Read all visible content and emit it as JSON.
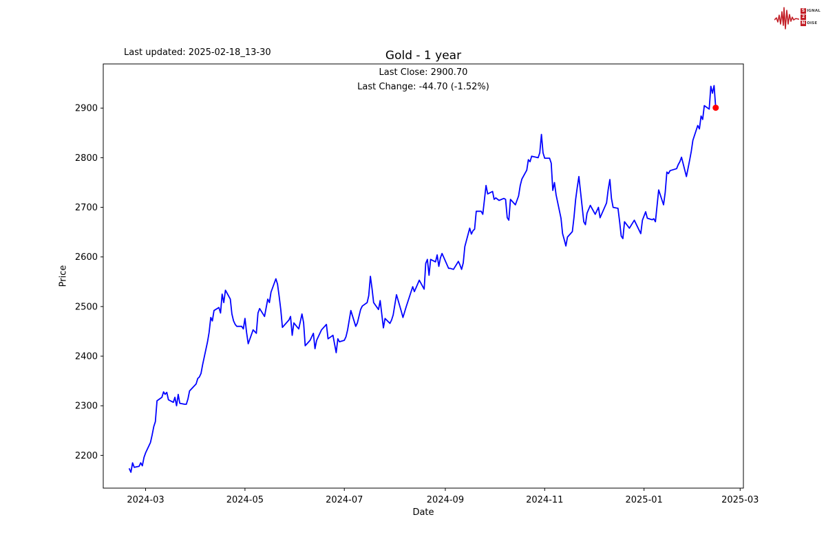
{
  "figure": {
    "last_updated": "Last updated: 2025-02-18_13-30",
    "logo": {
      "color": "#c21d25",
      "rows": [
        {
          "badge": "S",
          "rest": "IGNAL"
        },
        {
          "badge": "2",
          "rest": ""
        },
        {
          "badge": "N",
          "rest": "OISE"
        }
      ]
    }
  },
  "chart_data": {
    "type": "line",
    "title": "Gold - 1 year",
    "xlabel": "Date",
    "ylabel": "Price",
    "annotation": {
      "line1": "Last Close: 2900.70",
      "line2": "Last Change: -44.70 (-1.52%)"
    },
    "last_close": 2900.7,
    "last_change": -44.7,
    "last_change_pct": -1.52,
    "line_color": "#0000ff",
    "marker_color": "#ff0000",
    "grid": false,
    "legend": null,
    "xlim": [
      "2024-02-04",
      "2025-03-03"
    ],
    "ylim": [
      2134,
      2989
    ],
    "y_ticks": [
      2200,
      2300,
      2400,
      2500,
      2600,
      2700,
      2800,
      2900
    ],
    "x_ticks": [
      {
        "label": "2024-03",
        "date": "2024-03-01"
      },
      {
        "label": "2024-05",
        "date": "2024-05-01"
      },
      {
        "label": "2024-07",
        "date": "2024-07-01"
      },
      {
        "label": "2024-09",
        "date": "2024-09-01"
      },
      {
        "label": "2024-11",
        "date": "2024-11-01"
      },
      {
        "label": "2025-01",
        "date": "2025-01-01"
      },
      {
        "label": "2025-03",
        "date": "2025-03-01"
      }
    ],
    "series": [
      {
        "name": "Gold",
        "points": [
          [
            "2024-02-20",
            2173
          ],
          [
            "2024-02-21",
            2166
          ],
          [
            "2024-02-22",
            2185
          ],
          [
            "2024-02-23",
            2176
          ],
          [
            "2024-02-26",
            2178
          ],
          [
            "2024-02-27",
            2185
          ],
          [
            "2024-02-28",
            2179
          ],
          [
            "2024-02-29",
            2196
          ],
          [
            "2024-03-01",
            2205
          ],
          [
            "2024-03-04",
            2226
          ],
          [
            "2024-03-05",
            2241
          ],
          [
            "2024-03-06",
            2258
          ],
          [
            "2024-03-07",
            2268
          ],
          [
            "2024-03-08",
            2310
          ],
          [
            "2024-03-11",
            2317
          ],
          [
            "2024-03-12",
            2328
          ],
          [
            "2024-03-13",
            2323
          ],
          [
            "2024-03-14",
            2327
          ],
          [
            "2024-03-15",
            2312
          ],
          [
            "2024-03-18",
            2307
          ],
          [
            "2024-03-19",
            2317
          ],
          [
            "2024-03-20",
            2300
          ],
          [
            "2024-03-21",
            2323
          ],
          [
            "2024-03-22",
            2305
          ],
          [
            "2024-03-25",
            2303
          ],
          [
            "2024-03-26",
            2303
          ],
          [
            "2024-03-27",
            2314
          ],
          [
            "2024-03-28",
            2330
          ],
          [
            "2024-04-01",
            2344
          ],
          [
            "2024-04-02",
            2355
          ],
          [
            "2024-04-03",
            2358
          ],
          [
            "2024-04-04",
            2365
          ],
          [
            "2024-04-05",
            2383
          ],
          [
            "2024-04-08",
            2429
          ],
          [
            "2024-04-09",
            2448
          ],
          [
            "2024-04-10",
            2478
          ],
          [
            "2024-04-11",
            2471
          ],
          [
            "2024-04-12",
            2492
          ],
          [
            "2024-04-15",
            2498
          ],
          [
            "2024-04-16",
            2487
          ],
          [
            "2024-04-17",
            2525
          ],
          [
            "2024-04-18",
            2508
          ],
          [
            "2024-04-19",
            2533
          ],
          [
            "2024-04-22",
            2515
          ],
          [
            "2024-04-23",
            2485
          ],
          [
            "2024-04-24",
            2471
          ],
          [
            "2024-04-25",
            2464
          ],
          [
            "2024-04-26",
            2460
          ],
          [
            "2024-04-29",
            2460
          ],
          [
            "2024-04-30",
            2455
          ],
          [
            "2024-05-01",
            2476
          ],
          [
            "2024-05-02",
            2448
          ],
          [
            "2024-05-03",
            2425
          ],
          [
            "2024-05-06",
            2453
          ],
          [
            "2024-05-08",
            2446
          ],
          [
            "2024-05-09",
            2487
          ],
          [
            "2024-05-10",
            2496
          ],
          [
            "2024-05-13",
            2480
          ],
          [
            "2024-05-15",
            2515
          ],
          [
            "2024-05-16",
            2508
          ],
          [
            "2024-05-17",
            2529
          ],
          [
            "2024-05-20",
            2556
          ],
          [
            "2024-05-21",
            2545
          ],
          [
            "2024-05-22",
            2520
          ],
          [
            "2024-05-23",
            2494
          ],
          [
            "2024-05-24",
            2458
          ],
          [
            "2024-05-28",
            2473
          ],
          [
            "2024-05-29",
            2480
          ],
          [
            "2024-05-30",
            2442
          ],
          [
            "2024-05-31",
            2467
          ],
          [
            "2024-06-03",
            2455
          ],
          [
            "2024-06-05",
            2485
          ],
          [
            "2024-06-06",
            2467
          ],
          [
            "2024-06-07",
            2421
          ],
          [
            "2024-06-10",
            2432
          ],
          [
            "2024-06-12",
            2446
          ],
          [
            "2024-06-13",
            2415
          ],
          [
            "2024-06-14",
            2432
          ],
          [
            "2024-06-17",
            2453
          ],
          [
            "2024-06-20",
            2464
          ],
          [
            "2024-06-21",
            2435
          ],
          [
            "2024-06-24",
            2442
          ],
          [
            "2024-06-26",
            2407
          ],
          [
            "2024-06-27",
            2435
          ],
          [
            "2024-06-28",
            2429
          ],
          [
            "2024-07-01",
            2432
          ],
          [
            "2024-07-02",
            2439
          ],
          [
            "2024-07-03",
            2453
          ],
          [
            "2024-07-05",
            2492
          ],
          [
            "2024-07-08",
            2460
          ],
          [
            "2024-07-09",
            2467
          ],
          [
            "2024-07-11",
            2494
          ],
          [
            "2024-07-12",
            2501
          ],
          [
            "2024-07-15",
            2508
          ],
          [
            "2024-07-16",
            2522
          ],
          [
            "2024-07-17",
            2561
          ],
          [
            "2024-07-18",
            2536
          ],
          [
            "2024-07-19",
            2508
          ],
          [
            "2024-07-22",
            2494
          ],
          [
            "2024-07-23",
            2512
          ],
          [
            "2024-07-25",
            2457
          ],
          [
            "2024-07-26",
            2476
          ],
          [
            "2024-07-29",
            2466
          ],
          [
            "2024-07-30",
            2473
          ],
          [
            "2024-07-31",
            2483
          ],
          [
            "2024-08-02",
            2524
          ],
          [
            "2024-08-05",
            2490
          ],
          [
            "2024-08-06",
            2478
          ],
          [
            "2024-08-08",
            2500
          ],
          [
            "2024-08-12",
            2540
          ],
          [
            "2024-08-13",
            2530
          ],
          [
            "2024-08-16",
            2553
          ],
          [
            "2024-08-19",
            2535
          ],
          [
            "2024-08-20",
            2587
          ],
          [
            "2024-08-21",
            2595
          ],
          [
            "2024-08-22",
            2563
          ],
          [
            "2024-08-23",
            2595
          ],
          [
            "2024-08-26",
            2590
          ],
          [
            "2024-08-27",
            2604
          ],
          [
            "2024-08-28",
            2581
          ],
          [
            "2024-08-29",
            2598
          ],
          [
            "2024-08-30",
            2607
          ],
          [
            "2024-09-03",
            2577
          ],
          [
            "2024-09-04",
            2577
          ],
          [
            "2024-09-06",
            2575
          ],
          [
            "2024-09-09",
            2591
          ],
          [
            "2024-09-10",
            2584
          ],
          [
            "2024-09-11",
            2575
          ],
          [
            "2024-09-12",
            2588
          ],
          [
            "2024-09-13",
            2621
          ],
          [
            "2024-09-16",
            2658
          ],
          [
            "2024-09-17",
            2646
          ],
          [
            "2024-09-18",
            2653
          ],
          [
            "2024-09-19",
            2656
          ],
          [
            "2024-09-20",
            2692
          ],
          [
            "2024-09-23",
            2692
          ],
          [
            "2024-09-24",
            2686
          ],
          [
            "2024-09-26",
            2744
          ],
          [
            "2024-09-27",
            2727
          ],
          [
            "2024-09-30",
            2732
          ],
          [
            "2024-10-01",
            2716
          ],
          [
            "2024-10-02",
            2719
          ],
          [
            "2024-10-04",
            2714
          ],
          [
            "2024-10-07",
            2718
          ],
          [
            "2024-10-08",
            2716
          ],
          [
            "2024-10-09",
            2679
          ],
          [
            "2024-10-10",
            2674
          ],
          [
            "2024-10-11",
            2716
          ],
          [
            "2024-10-14",
            2705
          ],
          [
            "2024-10-16",
            2723
          ],
          [
            "2024-10-17",
            2744
          ],
          [
            "2024-10-18",
            2757
          ],
          [
            "2024-10-21",
            2775
          ],
          [
            "2024-10-22",
            2796
          ],
          [
            "2024-10-23",
            2792
          ],
          [
            "2024-10-24",
            2803
          ],
          [
            "2024-10-28",
            2800
          ],
          [
            "2024-10-29",
            2810
          ],
          [
            "2024-10-30",
            2847
          ],
          [
            "2024-10-31",
            2810
          ],
          [
            "2024-11-01",
            2799
          ],
          [
            "2024-11-04",
            2799
          ],
          [
            "2024-11-05",
            2789
          ],
          [
            "2024-11-06",
            2734
          ],
          [
            "2024-11-07",
            2750
          ],
          [
            "2024-11-08",
            2725
          ],
          [
            "2024-11-11",
            2678
          ],
          [
            "2024-11-12",
            2647
          ],
          [
            "2024-11-13",
            2635
          ],
          [
            "2024-11-14",
            2622
          ],
          [
            "2024-11-15",
            2640
          ],
          [
            "2024-11-18",
            2651
          ],
          [
            "2024-11-19",
            2680
          ],
          [
            "2024-11-20",
            2716
          ],
          [
            "2024-11-21",
            2740
          ],
          [
            "2024-11-22",
            2762
          ],
          [
            "2024-11-25",
            2671
          ],
          [
            "2024-11-26",
            2665
          ],
          [
            "2024-11-27",
            2688
          ],
          [
            "2024-11-29",
            2704
          ],
          [
            "2024-12-02",
            2686
          ],
          [
            "2024-12-04",
            2700
          ],
          [
            "2024-12-05",
            2679
          ],
          [
            "2024-12-09",
            2709
          ],
          [
            "2024-12-10",
            2736
          ],
          [
            "2024-12-11",
            2756
          ],
          [
            "2024-12-12",
            2718
          ],
          [
            "2024-12-13",
            2700
          ],
          [
            "2024-12-16",
            2698
          ],
          [
            "2024-12-17",
            2671
          ],
          [
            "2024-12-18",
            2642
          ],
          [
            "2024-12-19",
            2637
          ],
          [
            "2024-12-20",
            2671
          ],
          [
            "2024-12-23",
            2658
          ],
          [
            "2024-12-26",
            2674
          ],
          [
            "2024-12-30",
            2647
          ],
          [
            "2024-12-31",
            2674
          ],
          [
            "2025-01-02",
            2691
          ],
          [
            "2025-01-03",
            2678
          ],
          [
            "2025-01-06",
            2675
          ],
          [
            "2025-01-07",
            2677
          ],
          [
            "2025-01-08",
            2671
          ],
          [
            "2025-01-10",
            2735
          ],
          [
            "2025-01-13",
            2705
          ],
          [
            "2025-01-14",
            2730
          ],
          [
            "2025-01-15",
            2771
          ],
          [
            "2025-01-16",
            2768
          ],
          [
            "2025-01-17",
            2774
          ],
          [
            "2025-01-21",
            2778
          ],
          [
            "2025-01-22",
            2786
          ],
          [
            "2025-01-23",
            2792
          ],
          [
            "2025-01-24",
            2801
          ],
          [
            "2025-01-27",
            2762
          ],
          [
            "2025-01-28",
            2778
          ],
          [
            "2025-01-29",
            2795
          ],
          [
            "2025-01-30",
            2813
          ],
          [
            "2025-01-31",
            2835
          ],
          [
            "2025-02-03",
            2865
          ],
          [
            "2025-02-04",
            2858
          ],
          [
            "2025-02-05",
            2884
          ],
          [
            "2025-02-06",
            2877
          ],
          [
            "2025-02-07",
            2905
          ],
          [
            "2025-02-10",
            2898
          ],
          [
            "2025-02-11",
            2944
          ],
          [
            "2025-02-12",
            2930
          ],
          [
            "2025-02-13",
            2945.4
          ],
          [
            "2025-02-14",
            2900.7
          ]
        ]
      }
    ]
  }
}
